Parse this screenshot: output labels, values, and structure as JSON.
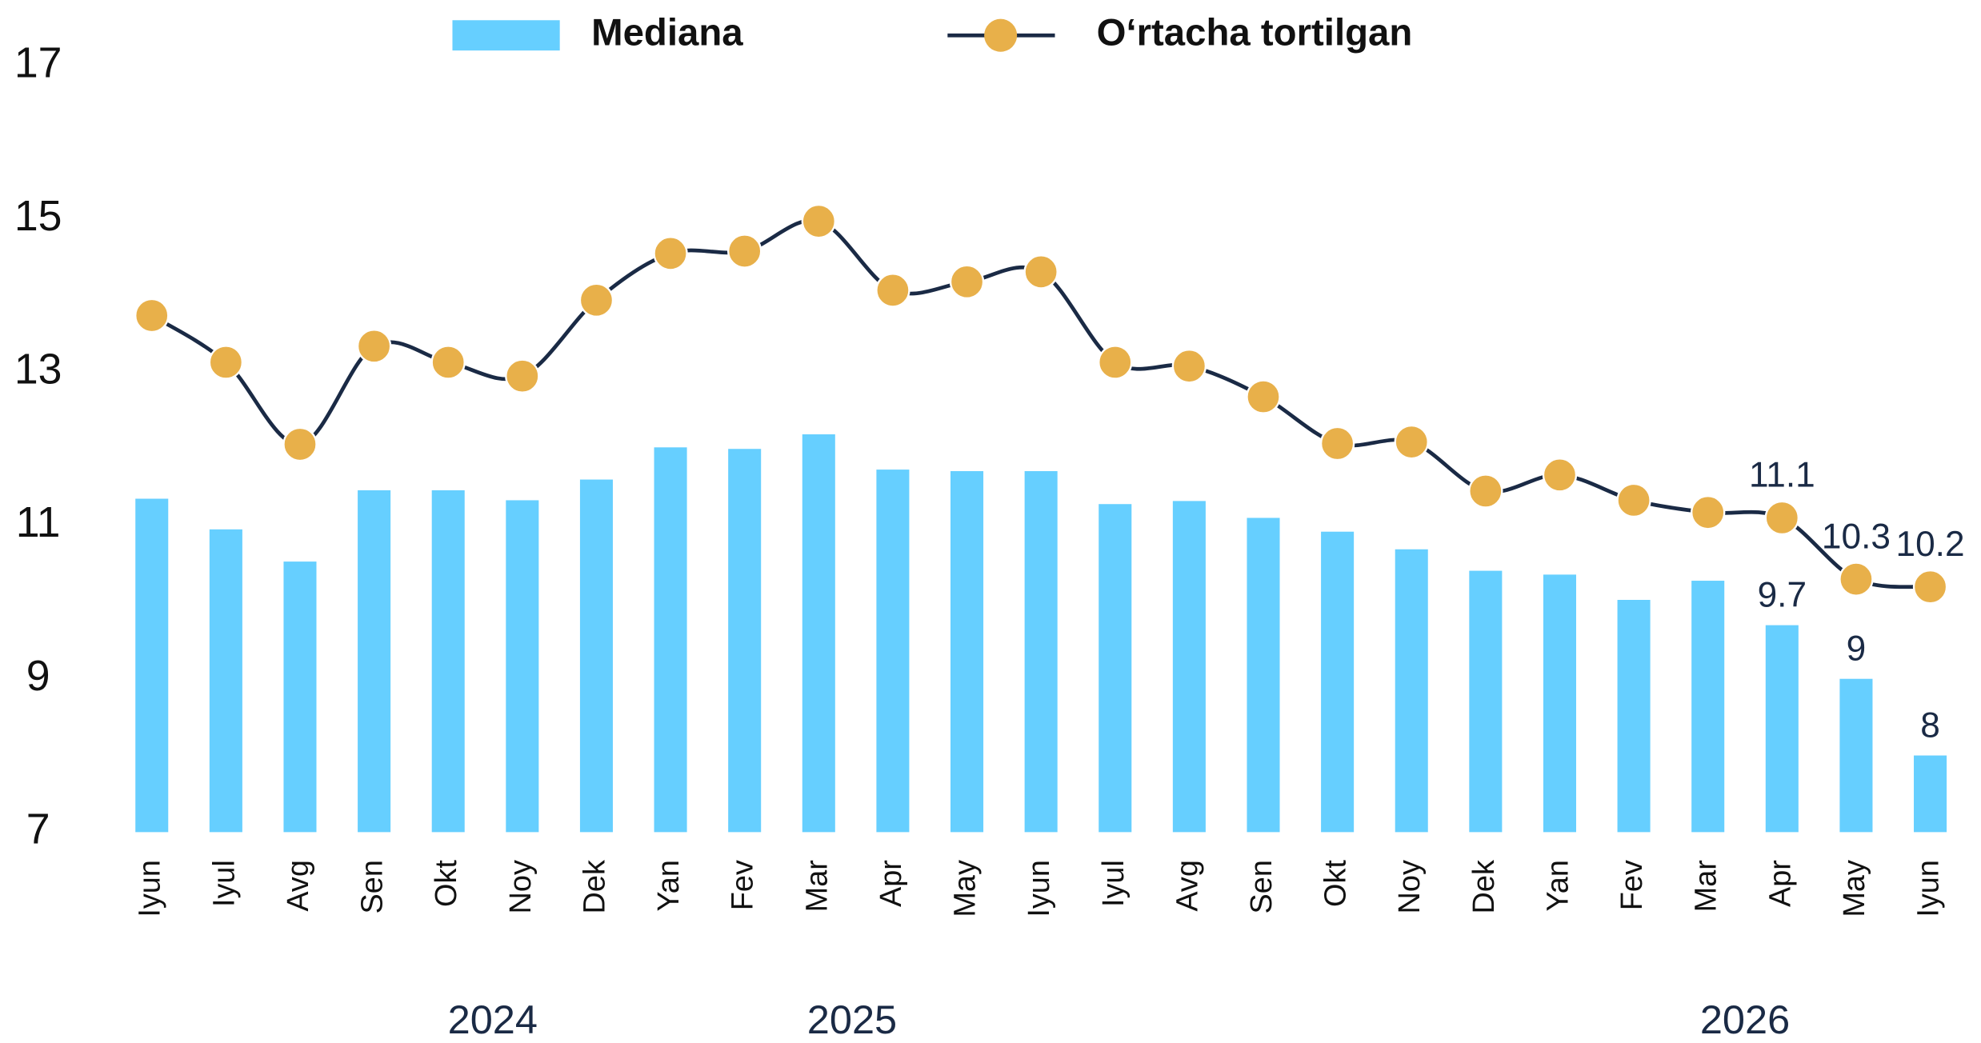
{
  "chart_data": {
    "type": "bar_line",
    "categories": [
      "Iyun",
      "Iyul",
      "Avg",
      "Sen",
      "Okt",
      "Noy",
      "Dek",
      "Yan",
      "Fev",
      "Mar",
      "Apr",
      "May",
      "Iyun",
      "Iyul",
      "Avg",
      "Sen",
      "Okt",
      "Noy",
      "Dek",
      "Yan",
      "Fev",
      "Mar",
      "Apr",
      "May",
      "Iyun"
    ],
    "year_labels": [
      "2024",
      "2025",
      "2026"
    ],
    "series": [
      {
        "name": "Mediana",
        "type": "bar",
        "color": "#66cfff",
        "values": [
          11.35,
          10.95,
          10.53,
          11.46,
          11.46,
          11.33,
          11.6,
          12.02,
          12.0,
          12.19,
          11.73,
          11.71,
          11.71,
          11.28,
          11.32,
          11.1,
          10.92,
          10.69,
          10.41,
          10.36,
          10.03,
          10.28,
          9.7,
          9,
          8
        ],
        "value_labels": [
          null,
          null,
          null,
          null,
          null,
          null,
          null,
          null,
          null,
          null,
          null,
          null,
          null,
          null,
          null,
          null,
          null,
          null,
          null,
          null,
          null,
          null,
          "9.7",
          "9",
          "8"
        ]
      },
      {
        "name": "O‘rtacha tortilgan",
        "type": "line",
        "color": "#1a2a45",
        "marker_color": "#e8b04a",
        "values": [
          13.74,
          13.13,
          12.06,
          13.34,
          13.13,
          12.95,
          13.94,
          14.55,
          14.58,
          14.97,
          14.07,
          14.18,
          14.31,
          13.13,
          13.08,
          12.68,
          12.07,
          12.09,
          11.45,
          11.66,
          11.33,
          11.17,
          11.1,
          10.3,
          10.2
        ],
        "value_labels": [
          null,
          null,
          null,
          null,
          null,
          null,
          null,
          null,
          null,
          null,
          null,
          null,
          null,
          null,
          null,
          null,
          null,
          null,
          null,
          null,
          null,
          null,
          "11.1",
          "10.3",
          "10.2"
        ]
      }
    ],
    "ylim": [
      7,
      17
    ],
    "yticks": [
      7,
      9,
      11,
      13,
      15,
      17
    ],
    "grid": false,
    "legend": "top"
  }
}
